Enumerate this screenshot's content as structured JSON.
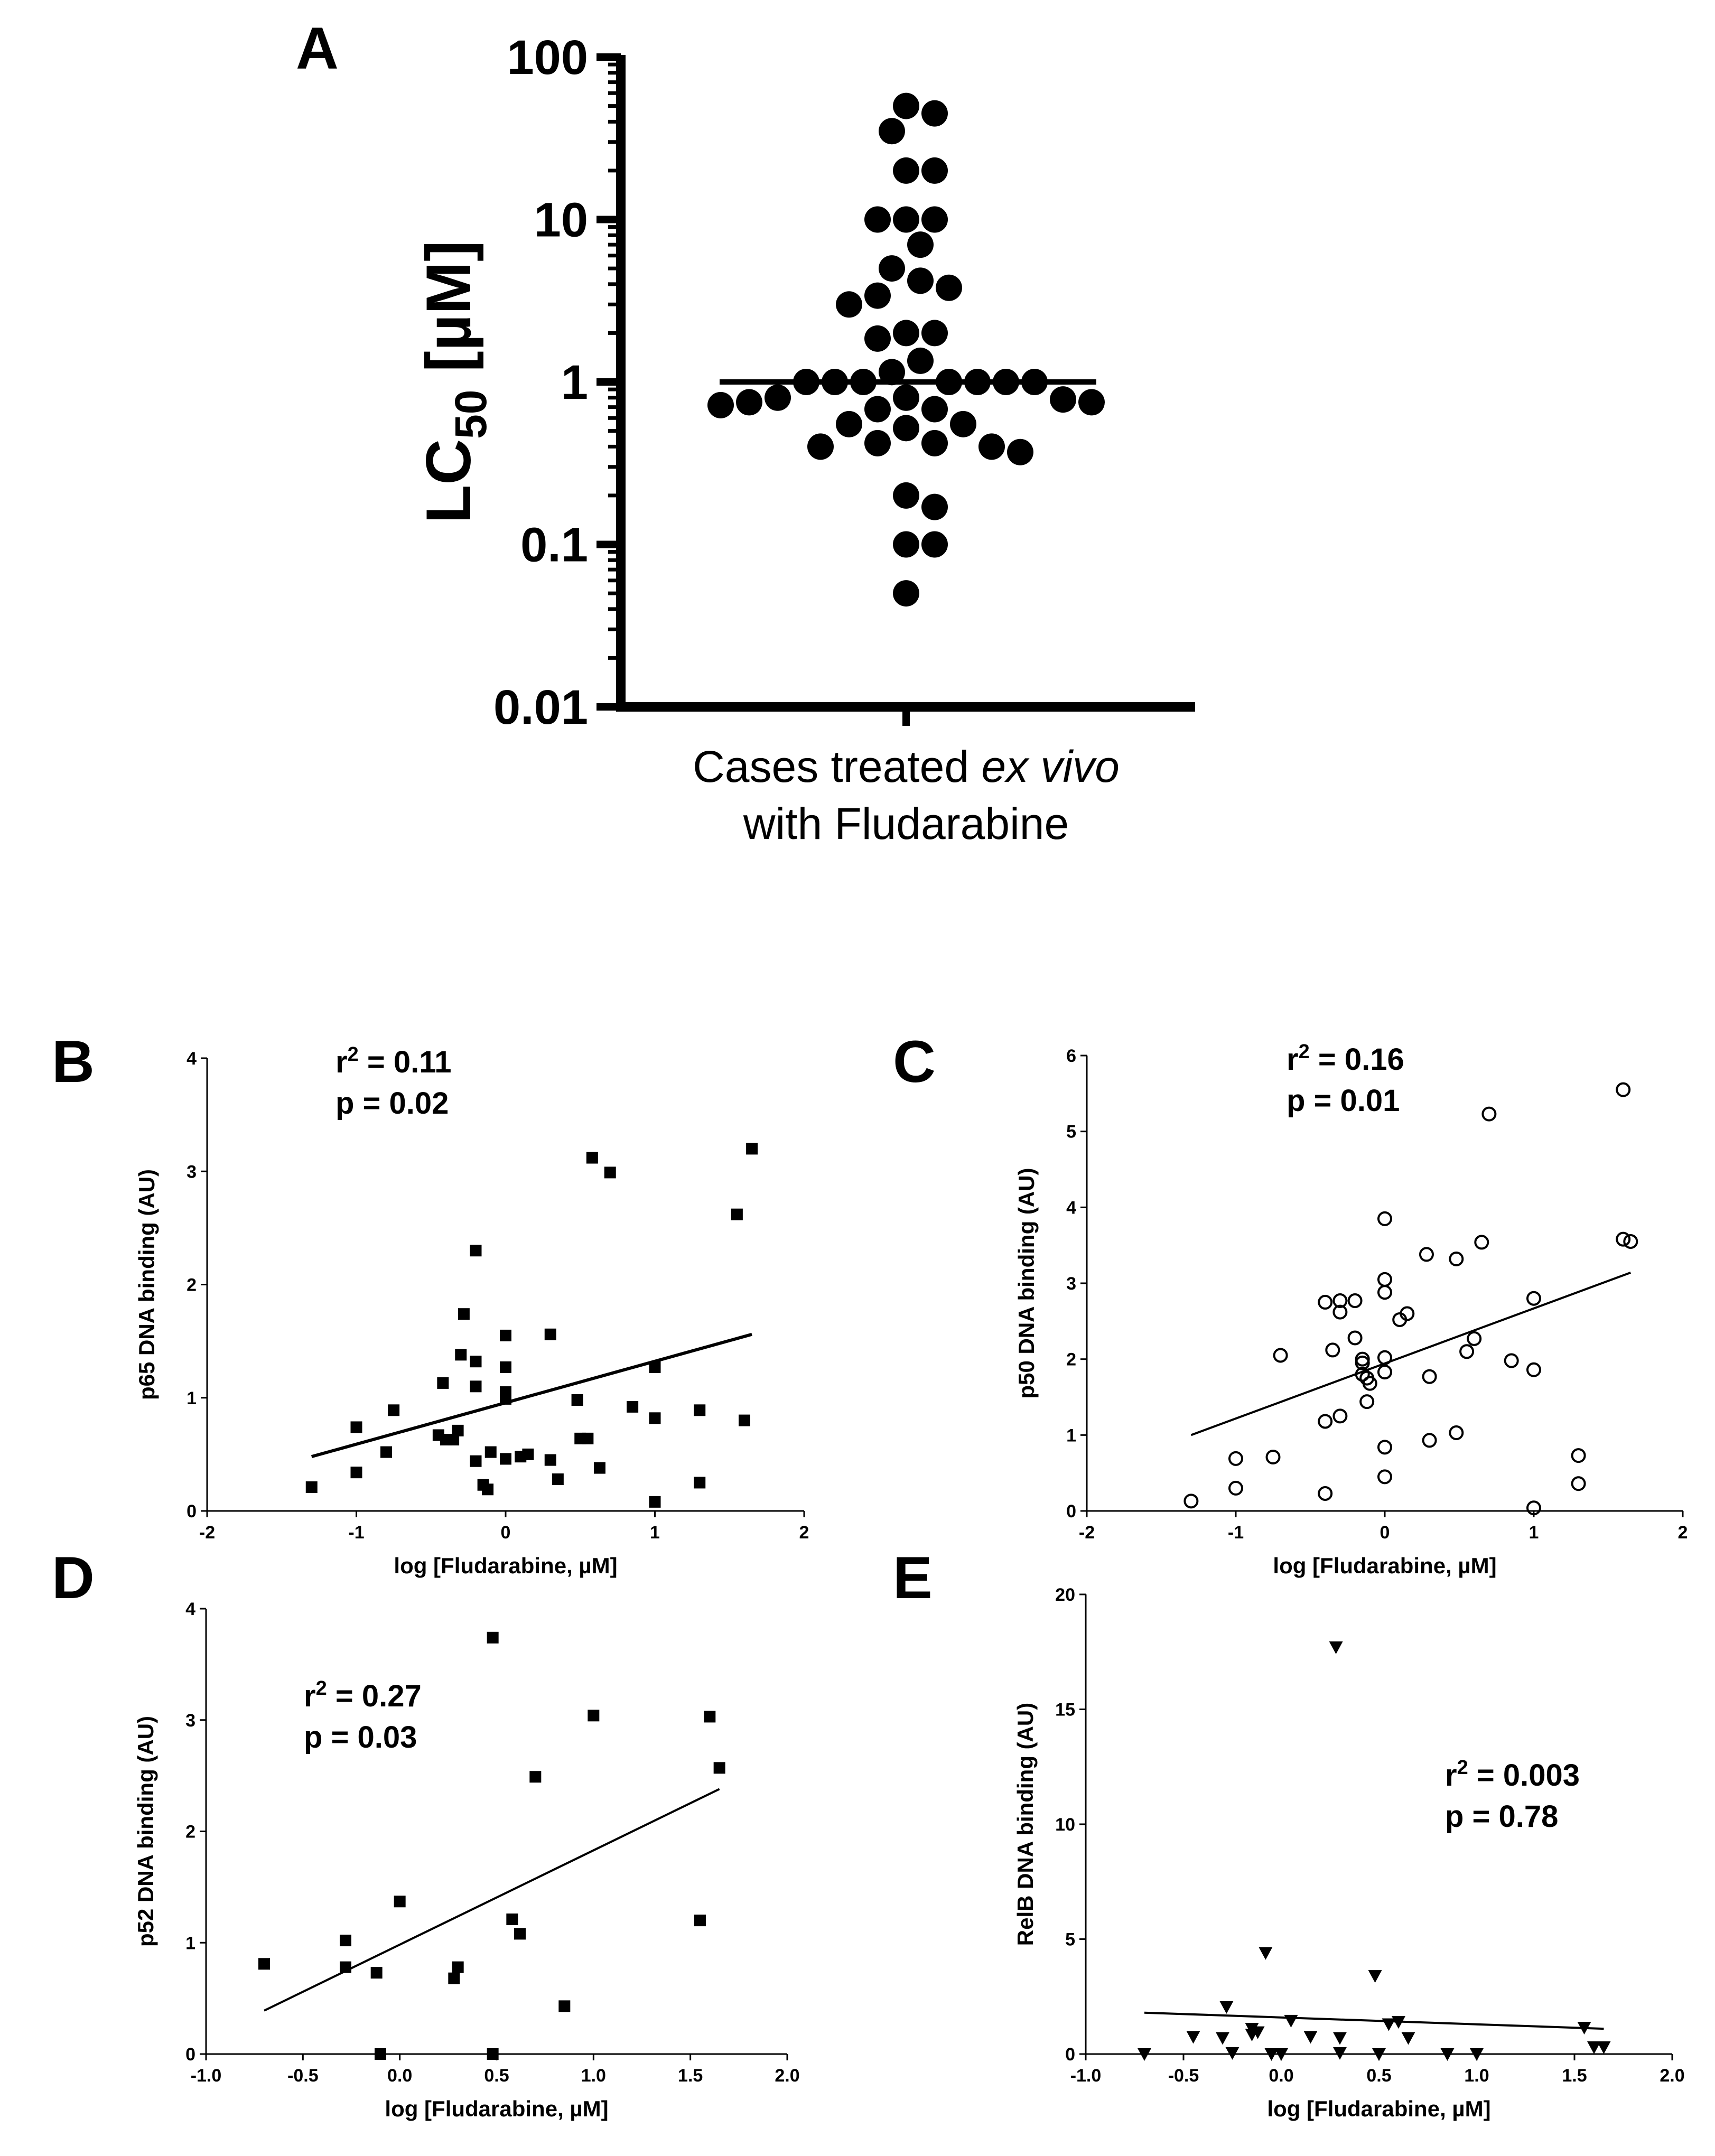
{
  "chart_data": [
    {
      "id": "A",
      "panel_label": "A",
      "type": "scatter",
      "yscale": "log",
      "ylabel_main": "LC",
      "ylabel_sub": "50",
      "ylabel_unit": " [µM]",
      "xlabel_lines": [
        "Cases treated",
        "ex vivo",
        "with Fludarabine"
      ],
      "ylim": [
        0.01,
        100
      ],
      "yticks": [
        "0.01",
        "0.1",
        "1",
        "10",
        "100"
      ],
      "median": 1,
      "values": [
        50,
        45,
        35,
        20,
        20,
        10,
        10,
        10,
        7,
        5,
        4.2,
        3.8,
        3.4,
        3.0,
        2.0,
        2.0,
        1.85,
        1.35,
        1.15,
        1.0,
        1.0,
        1.0,
        1.0,
        1.0,
        1.0,
        1.0,
        0.8,
        0.8,
        0.78,
        0.75,
        0.75,
        0.72,
        0.68,
        0.68,
        0.55,
        0.55,
        0.52,
        0.42,
        0.42,
        0.4,
        0.4,
        0.37,
        0.2,
        0.17,
        0.1,
        0.1,
        0.05
      ],
      "marker": "filled-circle"
    },
    {
      "id": "B",
      "panel_label": "B",
      "type": "scatter",
      "marker": "filled-square",
      "xlabel": "log [Fludarabine, µM]",
      "ylabel": "p65 DNA binding (AU)",
      "xlim": [
        -2,
        2
      ],
      "ylim": [
        0,
        4
      ],
      "xticks": [
        "-2",
        "-1",
        "0",
        "1",
        "2"
      ],
      "yticks": [
        "0",
        "1",
        "2",
        "3",
        "4"
      ],
      "stat_r2": "r² = 0.11",
      "stat_p": "p = 0.02",
      "fit_line": {
        "x": [
          -1.3,
          1.65
        ],
        "y": [
          0.48,
          1.56
        ]
      },
      "points": [
        [
          -1.3,
          0.21
        ],
        [
          -1.0,
          0.74
        ],
        [
          -1.0,
          0.34
        ],
        [
          -0.75,
          0.89
        ],
        [
          -0.8,
          0.52
        ],
        [
          -0.45,
          0.67
        ],
        [
          -0.42,
          1.13
        ],
        [
          -0.4,
          0.63
        ],
        [
          -0.35,
          0.63
        ],
        [
          -0.32,
          0.71
        ],
        [
          -0.3,
          1.38
        ],
        [
          -0.28,
          1.74
        ],
        [
          -0.2,
          2.3
        ],
        [
          -0.2,
          1.32
        ],
        [
          -0.2,
          1.1
        ],
        [
          -0.2,
          0.44
        ],
        [
          -0.15,
          0.23
        ],
        [
          -0.12,
          0.19
        ],
        [
          -0.1,
          0.52
        ],
        [
          0.0,
          1.55
        ],
        [
          0.0,
          1.27
        ],
        [
          0.0,
          1.05
        ],
        [
          0.0,
          0.99
        ],
        [
          0.0,
          0.46
        ],
        [
          0.1,
          0.48
        ],
        [
          0.15,
          0.5
        ],
        [
          0.3,
          1.56
        ],
        [
          0.3,
          0.45
        ],
        [
          0.35,
          0.28
        ],
        [
          0.48,
          0.98
        ],
        [
          0.5,
          0.64
        ],
        [
          0.55,
          0.64
        ],
        [
          0.58,
          3.12
        ],
        [
          0.63,
          0.38
        ],
        [
          0.7,
          2.99
        ],
        [
          0.85,
          0.92
        ],
        [
          1.0,
          1.27
        ],
        [
          1.0,
          0.82
        ],
        [
          1.0,
          0.08
        ],
        [
          1.3,
          0.89
        ],
        [
          1.3,
          0.25
        ],
        [
          1.55,
          2.62
        ],
        [
          1.6,
          0.8
        ],
        [
          1.65,
          3.2
        ]
      ]
    },
    {
      "id": "C",
      "panel_label": "C",
      "type": "scatter",
      "marker": "open-circle",
      "xlabel": "log [Fludarabine, µM]",
      "ylabel": "p50 DNA binding (AU)",
      "xlim": [
        -2,
        2
      ],
      "ylim": [
        0,
        6
      ],
      "xticks": [
        "-2",
        "-1",
        "0",
        "1",
        "2"
      ],
      "yticks": [
        "0",
        "1",
        "2",
        "3",
        "4",
        "5",
        "6"
      ],
      "stat_r2": "r² = 0.16",
      "stat_p": "p = 0.01",
      "fit_line": {
        "x": [
          -1.3,
          1.65
        ],
        "y": [
          1.0,
          3.14
        ]
      },
      "points": [
        [
          -1.3,
          0.13
        ],
        [
          -1.0,
          0.69
        ],
        [
          -1.0,
          0.3
        ],
        [
          -0.75,
          0.71
        ],
        [
          -0.7,
          2.05
        ],
        [
          -0.4,
          2.75
        ],
        [
          -0.4,
          1.18
        ],
        [
          -0.4,
          0.23
        ],
        [
          -0.35,
          2.12
        ],
        [
          -0.3,
          2.62
        ],
        [
          -0.3,
          2.77
        ],
        [
          -0.3,
          1.25
        ],
        [
          -0.2,
          2.77
        ],
        [
          -0.2,
          2.28
        ],
        [
          -0.15,
          2.0
        ],
        [
          -0.15,
          1.95
        ],
        [
          -0.15,
          1.8
        ],
        [
          -0.12,
          1.75
        ],
        [
          -0.12,
          1.44
        ],
        [
          -0.1,
          1.68
        ],
        [
          0.0,
          3.85
        ],
        [
          0.0,
          3.05
        ],
        [
          0.0,
          2.88
        ],
        [
          0.0,
          2.02
        ],
        [
          0.0,
          1.83
        ],
        [
          0.0,
          0.84
        ],
        [
          0.0,
          0.45
        ],
        [
          0.1,
          2.52
        ],
        [
          0.15,
          2.6
        ],
        [
          0.28,
          3.38
        ],
        [
          0.3,
          1.77
        ],
        [
          0.3,
          0.93
        ],
        [
          0.48,
          3.32
        ],
        [
          0.48,
          1.03
        ],
        [
          0.55,
          2.1
        ],
        [
          0.6,
          2.27
        ],
        [
          0.65,
          3.54
        ],
        [
          0.7,
          5.23
        ],
        [
          0.85,
          1.98
        ],
        [
          1.0,
          2.8
        ],
        [
          1.0,
          1.86
        ],
        [
          1.0,
          0.04
        ],
        [
          1.3,
          0.73
        ],
        [
          1.3,
          0.36
        ],
        [
          1.6,
          5.55
        ],
        [
          1.6,
          3.58
        ],
        [
          1.65,
          3.55
        ]
      ]
    },
    {
      "id": "D",
      "panel_label": "D",
      "type": "scatter",
      "marker": "filled-square",
      "xlabel": "log [Fludarabine, µM]",
      "ylabel": "p52 DNA binding (AU)",
      "xlim": [
        -1.0,
        2.0
      ],
      "ylim": [
        0,
        4
      ],
      "xticks": [
        "-1.0",
        "-0.5",
        "0.0",
        "0.5",
        "1.0",
        "1.5",
        "2.0"
      ],
      "yticks": [
        "0",
        "1",
        "2",
        "3",
        "4"
      ],
      "stat_r2": "r² = 0.27",
      "stat_p": "p = 0.03",
      "fit_line": {
        "x": [
          -0.7,
          1.65
        ],
        "y": [
          0.39,
          2.38
        ]
      },
      "points": [
        [
          -0.7,
          0.81
        ],
        [
          -0.28,
          1.02
        ],
        [
          -0.28,
          0.78
        ],
        [
          -0.12,
          0.73
        ],
        [
          -0.1,
          0.0
        ],
        [
          0.0,
          1.37
        ],
        [
          0.28,
          0.68
        ],
        [
          0.3,
          0.78
        ],
        [
          0.48,
          3.74
        ],
        [
          0.48,
          0.0
        ],
        [
          0.58,
          1.21
        ],
        [
          0.62,
          1.08
        ],
        [
          0.7,
          2.49
        ],
        [
          0.85,
          0.43
        ],
        [
          1.0,
          3.04
        ],
        [
          1.55,
          1.2
        ],
        [
          1.6,
          3.03
        ],
        [
          1.65,
          2.57
        ]
      ]
    },
    {
      "id": "E",
      "panel_label": "E",
      "type": "scatter",
      "marker": "filled-triangle-down",
      "xlabel": "log [Fludarabine, µM]",
      "ylabel": "RelB DNA binding (AU)",
      "xlim": [
        -1.0,
        2.0
      ],
      "ylim": [
        0,
        20
      ],
      "xticks": [
        "-1.0",
        "-0.5",
        "0.0",
        "0.5",
        "1.0",
        "1.5",
        "2.0"
      ],
      "yticks": [
        "0",
        "5",
        "10",
        "15",
        "20"
      ],
      "stat_r2": "r² = 0.003",
      "stat_p": "p = 0.78",
      "fit_line": {
        "x": [
          -0.7,
          1.65
        ],
        "y": [
          1.8,
          1.1
        ]
      },
      "points": [
        [
          -0.7,
          0.0
        ],
        [
          -0.45,
          0.75
        ],
        [
          -0.3,
          0.7
        ],
        [
          -0.28,
          2.05
        ],
        [
          -0.25,
          0.05
        ],
        [
          -0.15,
          1.1
        ],
        [
          -0.15,
          0.85
        ],
        [
          -0.12,
          0.95
        ],
        [
          -0.08,
          4.4
        ],
        [
          -0.05,
          0.0
        ],
        [
          0.0,
          0.0
        ],
        [
          0.05,
          1.45
        ],
        [
          0.15,
          0.75
        ],
        [
          0.28,
          17.7
        ],
        [
          0.3,
          0.7
        ],
        [
          0.3,
          0.05
        ],
        [
          0.48,
          3.4
        ],
        [
          0.5,
          0.0
        ],
        [
          0.55,
          1.3
        ],
        [
          0.6,
          1.4
        ],
        [
          0.65,
          0.7
        ],
        [
          0.85,
          0.0
        ],
        [
          1.0,
          0.0
        ],
        [
          1.55,
          1.15
        ],
        [
          1.6,
          0.3
        ],
        [
          1.65,
          0.3
        ]
      ]
    }
  ]
}
